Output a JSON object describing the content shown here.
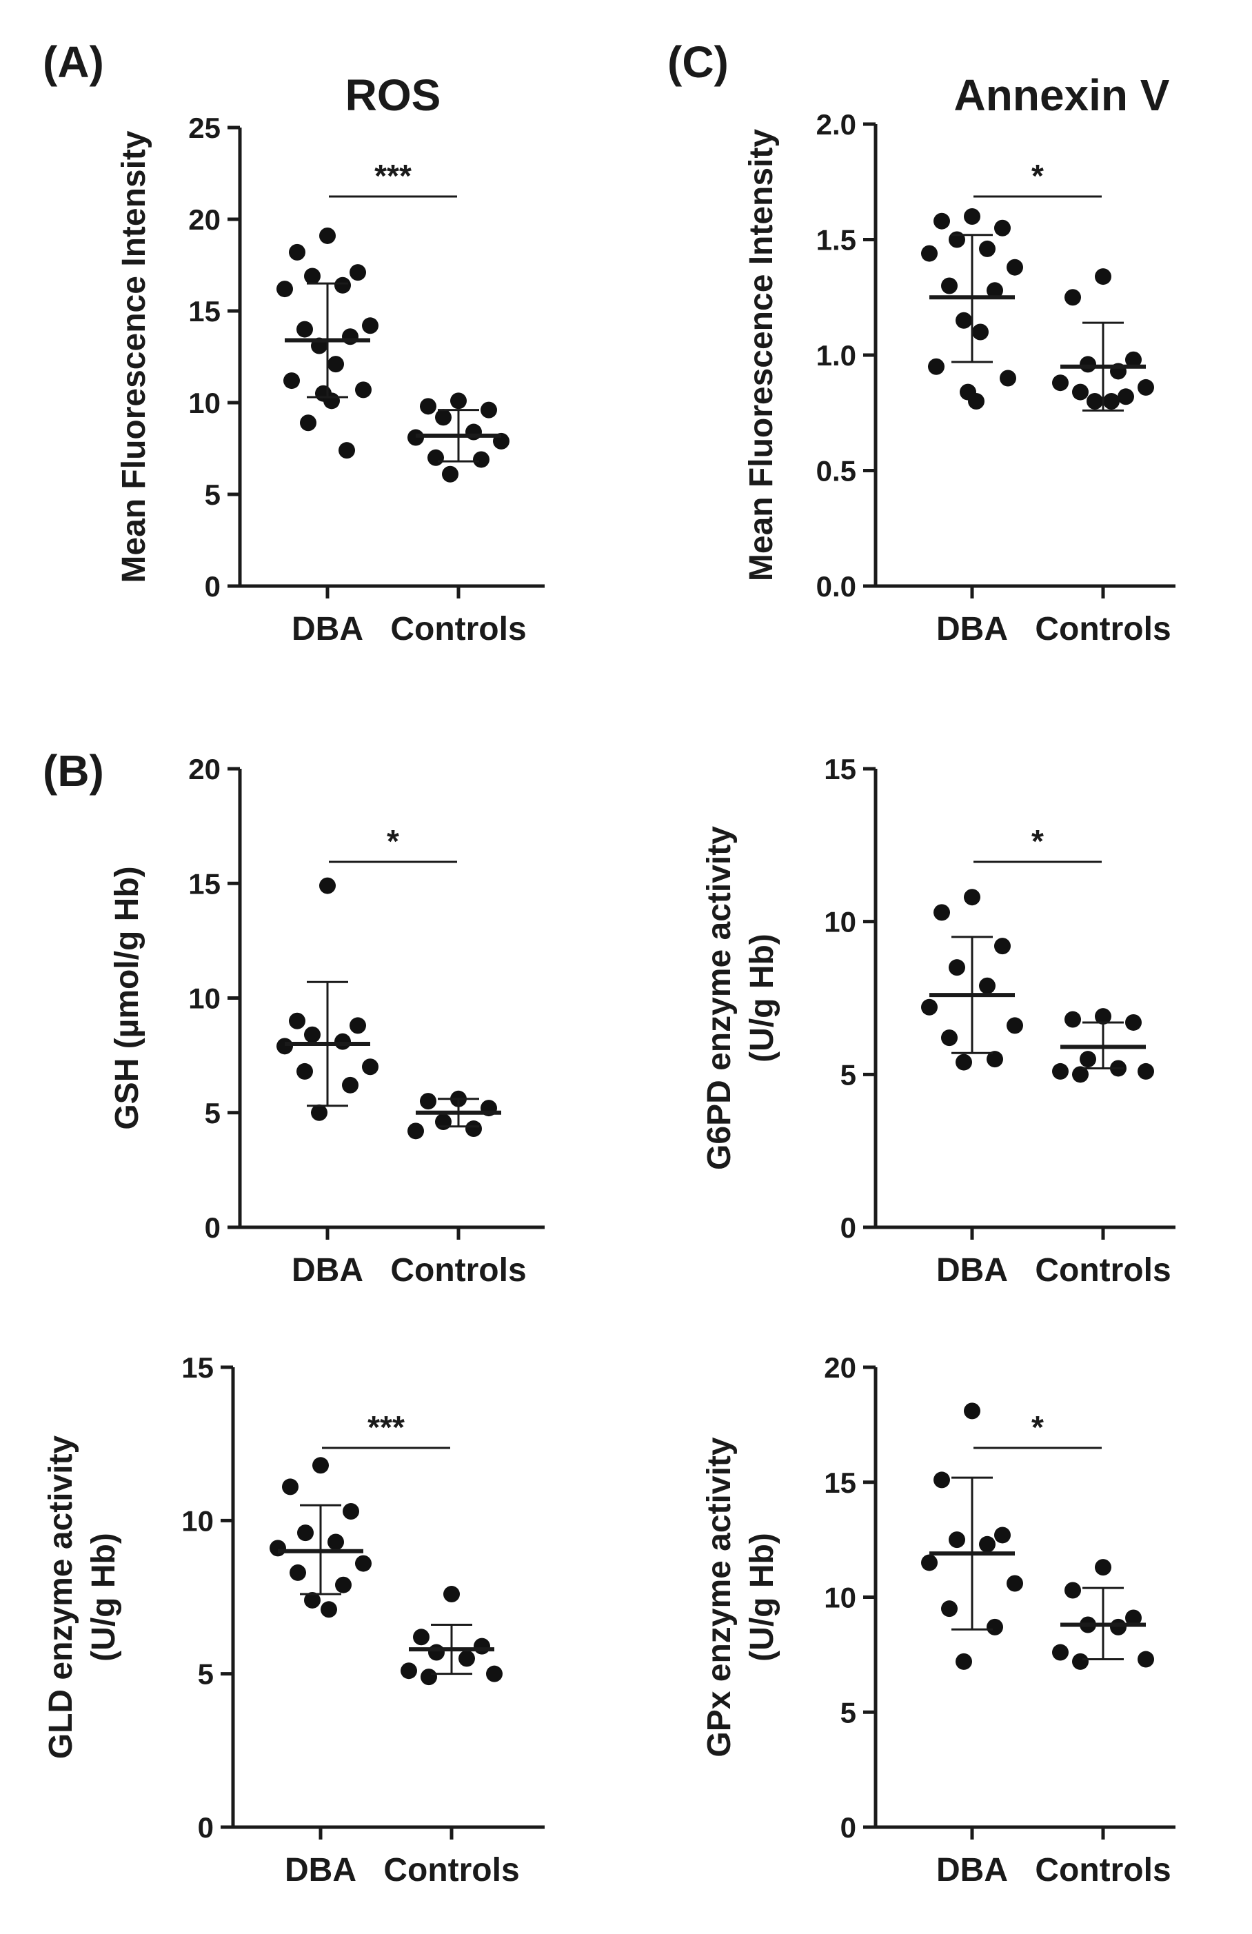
{
  "panels": [
    {
      "id": "A",
      "letter": "(A)"
    },
    {
      "id": "B",
      "letter": "(B)"
    },
    {
      "id": "C",
      "letter": "(C)"
    }
  ],
  "chart_data": [
    {
      "id": "ros",
      "type": "scatter",
      "title": "ROS",
      "ylabel": [
        "Mean Fluorescence Intensity"
      ],
      "categories": [
        "DBA",
        "Controls"
      ],
      "ylim": [
        0,
        25
      ],
      "yticks": [
        0,
        5,
        10,
        15,
        20,
        25
      ],
      "significance": "***",
      "groups": [
        {
          "category": "DBA",
          "mean": 13.4,
          "sd_low": 10.3,
          "sd_high": 16.5,
          "points": [
            19.1,
            18.2,
            17.1,
            16.9,
            16.4,
            16.2,
            14.2,
            14.0,
            13.6,
            13.1,
            12.1,
            11.2,
            10.7,
            10.5,
            10.1,
            8.9,
            7.4
          ]
        },
        {
          "category": "Controls",
          "mean": 8.2,
          "sd_low": 6.8,
          "sd_high": 9.6,
          "points": [
            10.1,
            9.8,
            9.6,
            9.2,
            8.4,
            8.1,
            7.9,
            7.0,
            6.9,
            6.1
          ]
        }
      ]
    },
    {
      "id": "annexin",
      "type": "scatter",
      "title": "Annexin V",
      "ylabel": [
        "Mean Fluorescence Intensity"
      ],
      "categories": [
        "DBA",
        "Controls"
      ],
      "ylim": [
        0,
        2.0
      ],
      "yticks": [
        "0.0",
        "0.5",
        "1.0",
        "1.5",
        "2.0"
      ],
      "significance": "*",
      "groups": [
        {
          "category": "DBA",
          "mean": 1.25,
          "sd_low": 0.97,
          "sd_high": 1.52,
          "points": [
            1.6,
            1.58,
            1.55,
            1.5,
            1.46,
            1.44,
            1.38,
            1.3,
            1.28,
            1.15,
            1.1,
            0.95,
            0.9,
            0.84,
            0.8
          ]
        },
        {
          "category": "Controls",
          "mean": 0.95,
          "sd_low": 0.76,
          "sd_high": 1.14,
          "points": [
            1.34,
            1.25,
            0.98,
            0.96,
            0.93,
            0.88,
            0.86,
            0.84,
            0.82,
            0.8,
            0.8
          ]
        }
      ]
    },
    {
      "id": "gsh",
      "type": "scatter",
      "title": "",
      "ylabel": [
        "GSH (µmol/g Hb)"
      ],
      "categories": [
        "DBA",
        "Controls"
      ],
      "ylim": [
        0,
        20
      ],
      "yticks": [
        0,
        5,
        10,
        15,
        20
      ],
      "significance": "*",
      "groups": [
        {
          "category": "DBA",
          "mean": 8.0,
          "sd_low": 5.3,
          "sd_high": 10.7,
          "points": [
            14.9,
            9.0,
            8.8,
            8.4,
            8.1,
            7.9,
            7.0,
            6.8,
            6.2,
            5.0
          ]
        },
        {
          "category": "Controls",
          "mean": 5.0,
          "sd_low": 4.4,
          "sd_high": 5.6,
          "points": [
            5.6,
            5.5,
            5.2,
            4.6,
            4.3,
            4.2
          ]
        }
      ]
    },
    {
      "id": "g6pd",
      "type": "scatter",
      "title": "",
      "ylabel": [
        "G6PD enzyme activity",
        "(U/g Hb)"
      ],
      "categories": [
        "DBA",
        "Controls"
      ],
      "ylim": [
        0,
        15
      ],
      "yticks": [
        0,
        5,
        10,
        15
      ],
      "significance": "*",
      "groups": [
        {
          "category": "DBA",
          "mean": 7.6,
          "sd_low": 5.7,
          "sd_high": 9.5,
          "points": [
            10.8,
            10.3,
            9.2,
            8.5,
            7.9,
            7.2,
            6.6,
            6.2,
            5.5,
            5.4
          ]
        },
        {
          "category": "Controls",
          "mean": 5.9,
          "sd_low": 5.2,
          "sd_high": 6.7,
          "points": [
            6.9,
            6.8,
            6.7,
            5.5,
            5.2,
            5.1,
            5.1,
            5.0
          ]
        }
      ]
    },
    {
      "id": "gld",
      "type": "scatter",
      "title": "",
      "ylabel": [
        "GLD enzyme activity",
        "(U/g Hb)"
      ],
      "categories": [
        "DBA",
        "Controls"
      ],
      "ylim": [
        0,
        15
      ],
      "yticks": [
        0,
        5,
        10,
        15
      ],
      "significance": "***",
      "groups": [
        {
          "category": "DBA",
          "mean": 9.0,
          "sd_low": 7.6,
          "sd_high": 10.5,
          "points": [
            11.8,
            11.1,
            10.3,
            9.6,
            9.3,
            9.1,
            8.6,
            8.3,
            7.9,
            7.4,
            7.1
          ]
        },
        {
          "category": "Controls",
          "mean": 5.8,
          "sd_low": 5.0,
          "sd_high": 6.6,
          "points": [
            7.6,
            6.2,
            5.9,
            5.7,
            5.5,
            5.1,
            5.0,
            4.9
          ]
        }
      ]
    },
    {
      "id": "gpx",
      "type": "scatter",
      "title": "",
      "ylabel": [
        "GPx enzyme activity",
        "(U/g Hb)"
      ],
      "categories": [
        "DBA",
        "Controls"
      ],
      "ylim": [
        0,
        20
      ],
      "yticks": [
        0,
        5,
        10,
        15,
        20
      ],
      "significance": "*",
      "groups": [
        {
          "category": "DBA",
          "mean": 11.9,
          "sd_low": 8.6,
          "sd_high": 15.2,
          "points": [
            18.1,
            15.1,
            12.7,
            12.5,
            12.3,
            11.5,
            10.6,
            9.5,
            8.7,
            7.2
          ]
        },
        {
          "category": "Controls",
          "mean": 8.8,
          "sd_low": 7.3,
          "sd_high": 10.4,
          "points": [
            11.3,
            10.3,
            9.1,
            8.8,
            8.7,
            7.6,
            7.3,
            7.2
          ]
        }
      ]
    }
  ]
}
